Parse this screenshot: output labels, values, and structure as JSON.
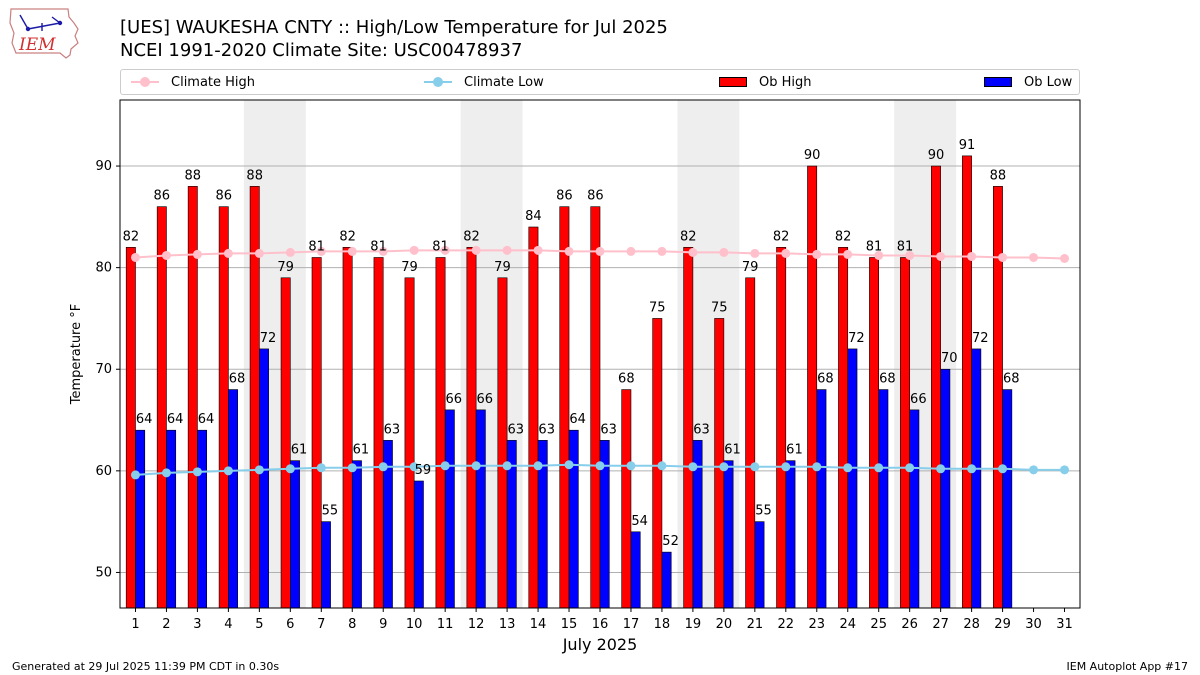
{
  "title_line1": "[UES] WAUKESHA CNTY :: High/Low Temperature for Jul 2025",
  "title_line2": "NCEI 1991-2020 Climate Site: USC00478937",
  "logo_text": "IEM",
  "footer_left": "Generated at 29 Jul 2025 11:39 PM CDT in 0.30s",
  "footer_right": "IEM Autoplot App #17",
  "colors": {
    "ob_high": "#ff0000",
    "ob_low": "#0000ff",
    "climate_high": "#ffc0cb",
    "climate_low": "#87ceeb",
    "weekend": "#eeeeee",
    "grid": "#b0b0b0"
  },
  "legend": {
    "climate_high": "Climate High",
    "climate_low": "Climate Low",
    "ob_high": "Ob High",
    "ob_low": "Ob Low"
  },
  "chart_data": {
    "type": "bar",
    "title": "[UES] WAUKESHA CNTY :: High/Low Temperature for Jul 2025",
    "xlabel": "July 2025",
    "ylabel": "Temperature °F",
    "ylim": [
      46.5,
      96.5
    ],
    "yticks": [
      50,
      60,
      70,
      80,
      90
    ],
    "grid": true,
    "legend_position": "top",
    "days": [
      1,
      2,
      3,
      4,
      5,
      6,
      7,
      8,
      9,
      10,
      11,
      12,
      13,
      14,
      15,
      16,
      17,
      18,
      19,
      20,
      21,
      22,
      23,
      24,
      25,
      26,
      27,
      28,
      29,
      30,
      31
    ],
    "weekend_spans": [
      [
        5,
        6
      ],
      [
        12,
        13
      ],
      [
        19,
        20
      ],
      [
        26,
        27
      ]
    ],
    "series": [
      {
        "name": "Ob High",
        "kind": "bar",
        "values": [
          82,
          86,
          88,
          86,
          88,
          79,
          81,
          82,
          81,
          79,
          81,
          82,
          79,
          84,
          86,
          86,
          68,
          75,
          82,
          75,
          79,
          82,
          90,
          82,
          81,
          81,
          90,
          91,
          88,
          null,
          null
        ]
      },
      {
        "name": "Ob Low",
        "kind": "bar",
        "values": [
          64,
          64,
          64,
          68,
          72,
          61,
          55,
          61,
          63,
          59,
          66,
          66,
          63,
          63,
          64,
          63,
          54,
          52,
          63,
          61,
          55,
          61,
          68,
          72,
          68,
          66,
          70,
          72,
          68,
          null,
          null
        ]
      },
      {
        "name": "Climate High",
        "kind": "line",
        "values": [
          81.0,
          81.2,
          81.3,
          81.4,
          81.4,
          81.5,
          81.6,
          81.6,
          81.6,
          81.7,
          81.7,
          81.7,
          81.7,
          81.7,
          81.6,
          81.6,
          81.6,
          81.6,
          81.5,
          81.5,
          81.4,
          81.4,
          81.3,
          81.3,
          81.2,
          81.2,
          81.1,
          81.1,
          81.0,
          81.0,
          80.9
        ]
      },
      {
        "name": "Climate Low",
        "kind": "line",
        "values": [
          59.6,
          59.8,
          59.9,
          60.0,
          60.1,
          60.2,
          60.3,
          60.3,
          60.4,
          60.4,
          60.5,
          60.5,
          60.5,
          60.5,
          60.6,
          60.5,
          60.5,
          60.5,
          60.4,
          60.4,
          60.4,
          60.4,
          60.4,
          60.3,
          60.3,
          60.3,
          60.2,
          60.2,
          60.2,
          60.1,
          60.1
        ]
      }
    ]
  }
}
